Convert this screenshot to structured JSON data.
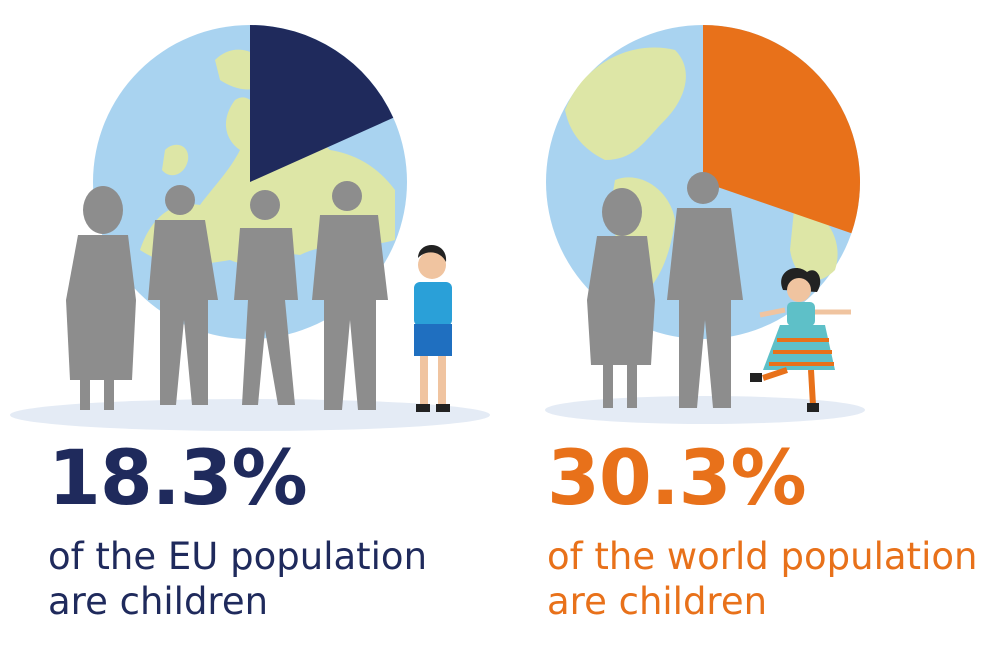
{
  "colors": {
    "eu": "#1f2a5c",
    "world": "#e8711a",
    "ocean": "#a9d3f0",
    "land": "#dde6a6",
    "person": "#8d8d8d",
    "ground": "#e4ebf5"
  },
  "panels": [
    {
      "id": "eu",
      "percent_value": 18.3,
      "percent_label": "18.3%",
      "caption_line1": "of the EU population",
      "caption_line2": "are children"
    },
    {
      "id": "world",
      "percent_value": 30.3,
      "percent_label": "30.3%",
      "caption_line1": "of the world population",
      "caption_line2": "are children"
    }
  ],
  "icons": {
    "eu_globe": "europe-globe-icon",
    "world_globe": "world-globe-icon",
    "adults": "adult-silhouette-icon",
    "boy": "boy-illustration-icon",
    "girl": "girl-illustration-icon"
  }
}
